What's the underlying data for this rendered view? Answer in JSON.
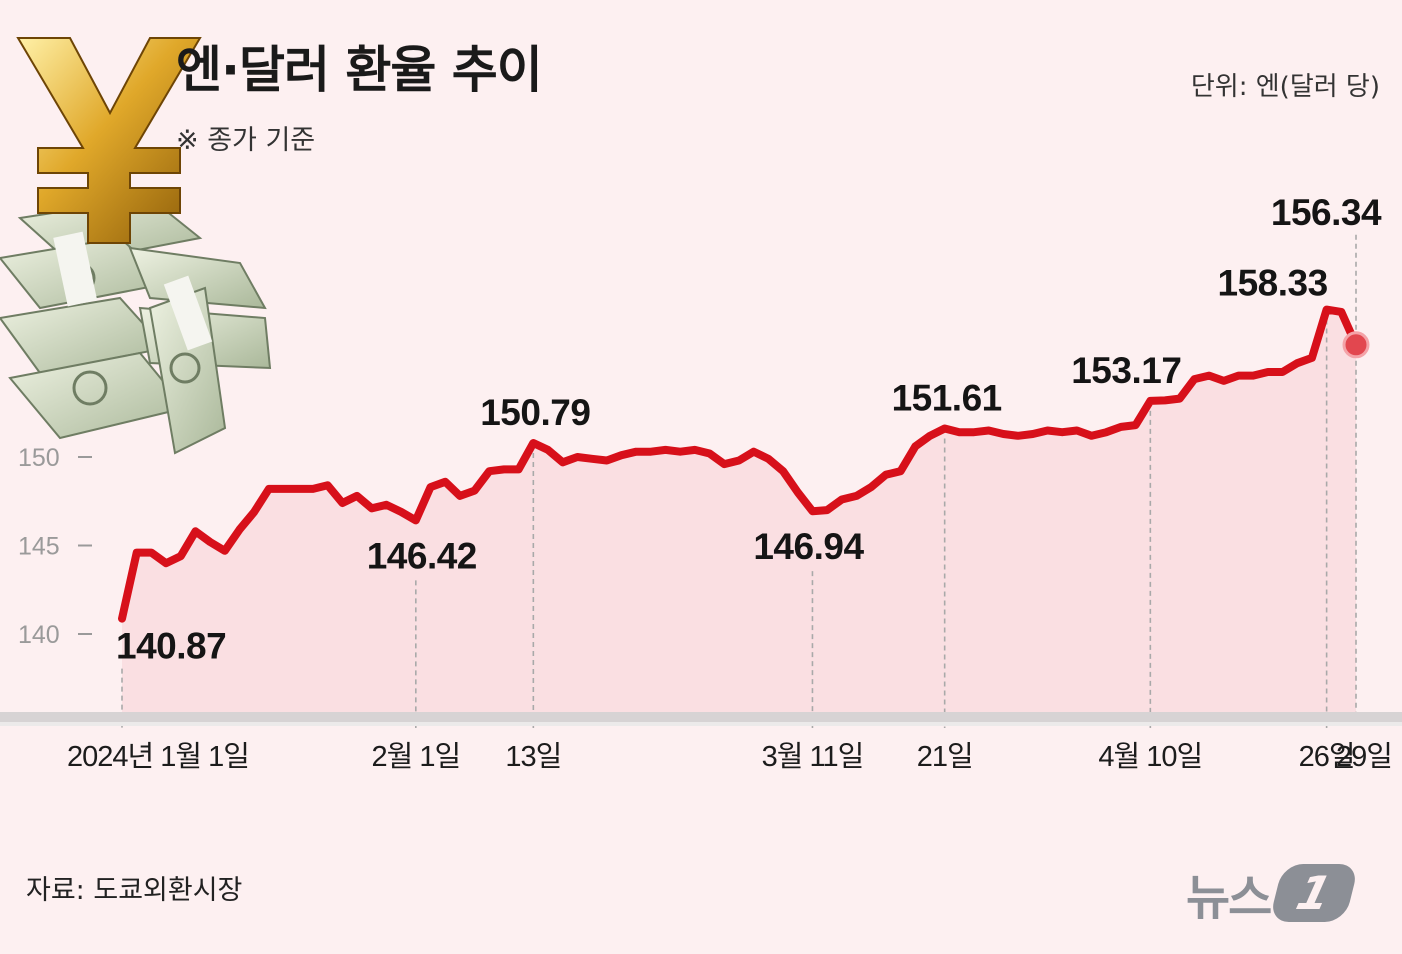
{
  "header": {
    "title": "엔·달러 환율 추이",
    "subtitle": "※ 종가 기준",
    "unit": "단위: 엔(달러 당)"
  },
  "footer": {
    "source": "자료: 도쿄외환시장",
    "logo_text": "뉴스",
    "logo_mark": "1"
  },
  "colors": {
    "line": "#d7101a",
    "area": "#f8d9dc",
    "background": "#fdf0f1"
  },
  "chart_data": {
    "type": "line",
    "title": "엔·달러 환율 추이",
    "subtitle": "※ 종가 기준",
    "unit": "단위: 엔(달러 당)",
    "ylim": [
      136,
      160
    ],
    "yticks": [
      140,
      145,
      150
    ],
    "grid": false,
    "x_labels": [
      "2024년 1월 1일",
      "2월 1일",
      "13일",
      "3월 11일",
      "21일",
      "4월 10일",
      "26일",
      "29일"
    ],
    "series": [
      {
        "values": [
          140.87,
          144.6,
          144.6,
          144.0,
          144.4,
          145.8,
          145.2,
          144.7,
          145.9,
          146.9,
          148.2,
          148.2,
          148.2,
          148.2,
          148.4,
          147.4,
          147.8,
          147.1,
          147.3,
          146.9,
          146.42,
          148.3,
          148.6,
          147.8,
          148.1,
          149.2,
          149.3,
          149.3,
          150.79,
          150.4,
          149.7,
          150.0,
          149.9,
          149.8,
          150.1,
          150.3,
          150.3,
          150.4,
          150.3,
          150.4,
          150.2,
          149.6,
          149.8,
          150.3,
          149.9,
          149.2,
          148.0,
          146.94,
          147.0,
          147.6,
          147.8,
          148.3,
          149.0,
          149.2,
          150.6,
          151.2,
          151.61,
          151.4,
          151.4,
          151.5,
          151.3,
          151.2,
          151.3,
          151.5,
          151.4,
          151.5,
          151.2,
          151.4,
          151.7,
          151.8,
          153.17,
          153.2,
          153.3,
          154.4,
          154.6,
          154.3,
          154.6,
          154.6,
          154.8,
          154.8,
          155.3,
          155.6,
          158.33,
          158.2,
          156.34
        ]
      }
    ],
    "annotations": [
      {
        "label": "140.87",
        "point_index": 0,
        "x_label": "2024년 1월 1일"
      },
      {
        "label": "146.42",
        "point_index": 20,
        "x_label": "2월 1일"
      },
      {
        "label": "150.79",
        "point_index": 28,
        "x_label": "13일"
      },
      {
        "label": "146.94",
        "point_index": 47,
        "x_label": "3월 11일"
      },
      {
        "label": "151.61",
        "point_index": 56,
        "x_label": "21일"
      },
      {
        "label": "153.17",
        "point_index": 70,
        "x_label": "4월 10일"
      },
      {
        "label": "158.33",
        "point_index": 82,
        "x_label": "26일"
      },
      {
        "label": "156.34",
        "point_index": 84,
        "x_label": "29일"
      }
    ]
  }
}
